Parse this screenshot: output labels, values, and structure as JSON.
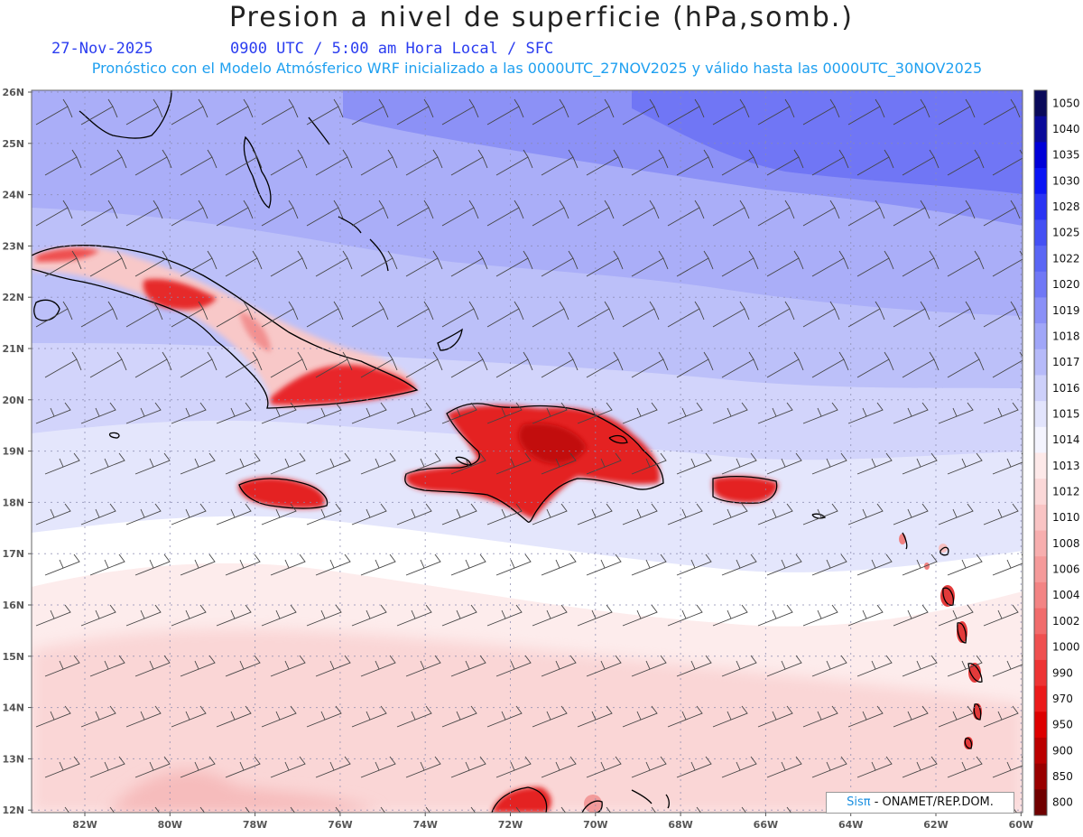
{
  "header": {
    "title": "Presion a nivel de superficie (hPa,somb.)",
    "date": "27-Nov-2025",
    "time": "0900 UTC / 5:00 am Hora Local / SFC",
    "model_info": "Pronóstico con el Modelo Atmósferico WRF inicializado a las 0000UTC_27NOV2025 y válido hasta las  0000UTC_30NOV2025"
  },
  "lat_labels": [
    "26N",
    "25N",
    "24N",
    "23N",
    "22N",
    "21N",
    "20N",
    "19N",
    "18N",
    "17N",
    "16N",
    "15N",
    "14N",
    "13N",
    "12N"
  ],
  "lon_labels": [
    "82W",
    "80W",
    "78W",
    "76W",
    "74W",
    "72W",
    "70W",
    "68W",
    "66W",
    "64W",
    "62W",
    "60W"
  ],
  "colorbar": {
    "levels": [
      "1050",
      "1040",
      "1035",
      "1030",
      "1028",
      "1025",
      "1022",
      "1020",
      "1019",
      "1018",
      "1017",
      "1016",
      "1015",
      "1014",
      "1013",
      "1012",
      "1010",
      "1008",
      "1006",
      "1004",
      "1002",
      "1000",
      "990",
      "970",
      "950",
      "900",
      "850",
      "800"
    ],
    "colors": [
      "#0a0a5a",
      "#0a0a9a",
      "#0000d8",
      "#0a14f5",
      "#2a34f4",
      "#4450f4",
      "#5a66f5",
      "#7078f6",
      "#8a90f7",
      "#a0a6f8",
      "#b6baf9",
      "#cdd0fa",
      "#e2e4fc",
      "#f4f4fe",
      "#fde9e9",
      "#fbd8d8",
      "#f9c4c4",
      "#f7aeae",
      "#f59a9a",
      "#f38484",
      "#f16c6c",
      "#ef5050",
      "#ed3434",
      "#eb1a1a",
      "#dd0000",
      "#bb0000",
      "#990000",
      "#700000"
    ]
  },
  "credit": {
    "brand": "Sisπ",
    "org": " - ONAMET/REP.DOM."
  },
  "colors": {
    "high": "#6a6ef5",
    "mid": "#a9acf8",
    "neutral": "#ffffff",
    "low": "#fde4e4",
    "land": "#e8191c"
  }
}
